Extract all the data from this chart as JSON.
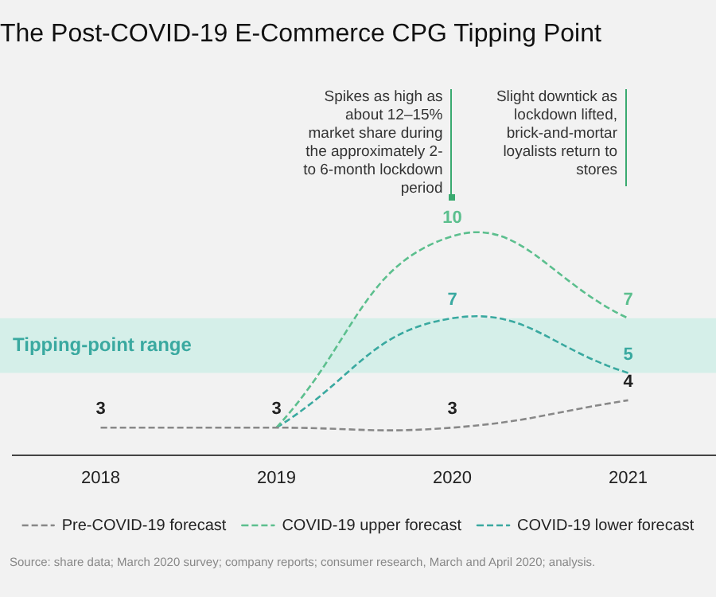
{
  "chart_data": {
    "type": "line",
    "title": "The Post-COVID-19 E-Commerce CPG Tipping Point",
    "categories": [
      "2018",
      "2019",
      "2020",
      "2021"
    ],
    "series": [
      {
        "name": "Pre-COVID-19 forecast",
        "color": "#888888",
        "values": [
          3,
          3,
          3,
          4
        ],
        "value_labels": [
          "3",
          "3",
          "3",
          "4"
        ]
      },
      {
        "name": "COVID-19 upper forecast",
        "color": "#5cbf8e",
        "values": [
          null,
          3,
          10,
          7
        ],
        "value_labels": [
          null,
          null,
          "10",
          "7"
        ]
      },
      {
        "name": "COVID-19 lower forecast",
        "color": "#3aa9a0",
        "values": [
          null,
          3,
          7,
          5
        ],
        "value_labels": [
          null,
          null,
          "7",
          "5"
        ]
      }
    ],
    "line_style": "dashed",
    "marker": "none",
    "relative": false,
    "grid": false,
    "legend": "bottom",
    "bands": [
      {
        "axis": "y",
        "from": 5,
        "to": 7,
        "label": "Tipping-point range",
        "color": "#d5efe9"
      }
    ],
    "annotations": [
      {
        "text": "Spikes as high as about 12–15% market share during the approximately 2- to 6-month lockdown period",
        "x": "2020",
        "y": 10
      },
      "Slight downtick as lockdown lifted, brick-and-mortar loyalists return to stores",
      "Source: share data; March 2020 survey; company reports; consumer research, March and April 2020; analysis."
    ]
  }
}
